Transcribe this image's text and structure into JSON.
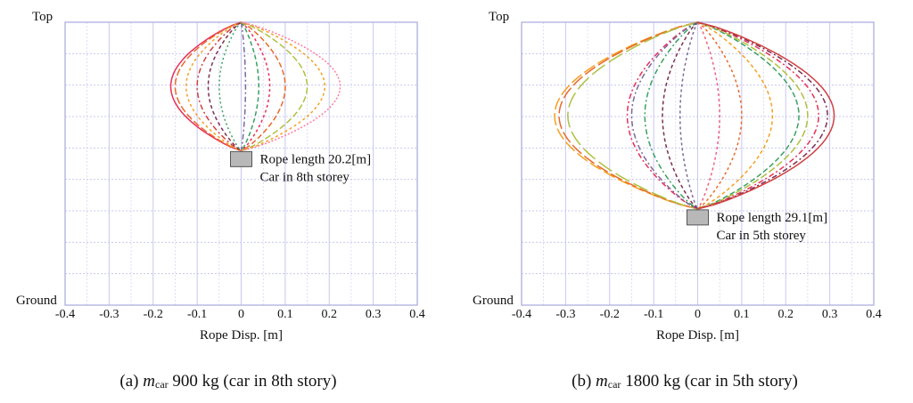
{
  "colors": {
    "grid": "#c8c8f0",
    "frame": "#b4b4e4",
    "car_fill": "#b8b8b8",
    "curve_palette": [
      "#e8305a",
      "#ff7a9c",
      "#e86a2a",
      "#f4a020",
      "#b0c040",
      "#3aa060",
      "#7a6a9a",
      "#7a3050",
      "#d04040",
      "#f06080"
    ]
  },
  "charts": [
    {
      "id": "a",
      "chart_data": {
        "type": "line",
        "title": "",
        "xlabel": "Rope Disp. [m]",
        "ylabel": "",
        "xlim": [
          -0.4,
          0.4
        ],
        "ylim": [
          0,
          1
        ],
        "x_ticks": [
          "-0.4",
          "-0.3",
          "-0.2",
          "-0.1",
          "0",
          "0.1",
          "0.2",
          "0.3",
          "0.4"
        ],
        "y_top_label": "Top",
        "y_bottom_label": "Ground",
        "grid": true,
        "car_position_fraction_from_top": 0.454,
        "annotation_lines": [
          "Rope length 20.2[m]",
          "Car in 8th storey"
        ],
        "series": [
          {
            "peak": -0.16,
            "color": "#e8305a",
            "dash": ""
          },
          {
            "peak": -0.15,
            "color": "#e86a2a",
            "dash": "8,3"
          },
          {
            "peak": -0.125,
            "color": "#f4a020",
            "dash": "3,3"
          },
          {
            "peak": -0.1,
            "color": "#d04040",
            "dash": "6,3,2,3"
          },
          {
            "peak": -0.075,
            "color": "#7a3050",
            "dash": "4,3"
          },
          {
            "peak": -0.05,
            "color": "#3aa060",
            "dash": "2,3"
          },
          {
            "peak": 0.01,
            "color": "#7a6a9a",
            "dash": "6,3,2,3"
          },
          {
            "peak": 0.04,
            "color": "#3aa060",
            "dash": "5,3"
          },
          {
            "peak": 0.065,
            "color": "#e8305a",
            "dash": "3,3"
          },
          {
            "peak": 0.1,
            "color": "#e86a2a",
            "dash": "6,3"
          },
          {
            "peak": 0.15,
            "color": "#b0c040",
            "dash": "7,3"
          },
          {
            "peak": 0.19,
            "color": "#f4a020",
            "dash": "3,3"
          },
          {
            "peak": 0.225,
            "color": "#ff7a9c",
            "dash": "2,2"
          }
        ]
      }
    },
    {
      "id": "b",
      "chart_data": {
        "type": "line",
        "title": "",
        "xlabel": "Rope Disp. [m]",
        "ylabel": "",
        "xlim": [
          -0.4,
          0.4
        ],
        "ylim": [
          0,
          1
        ],
        "x_ticks": [
          "-0.4",
          "-0.3",
          "-0.2",
          "-0.1",
          "0",
          "0.1",
          "0.2",
          "0.3",
          "0.4"
        ],
        "y_top_label": "Top",
        "y_bottom_label": "Ground",
        "grid": true,
        "car_position_fraction_from_top": 0.66,
        "annotation_lines": [
          "Rope length 29.1[m]",
          "Car in 5th storey"
        ],
        "series": [
          {
            "peak": -0.325,
            "color": "#f4a020",
            "dash": "14,4"
          },
          {
            "peak": -0.315,
            "color": "#e86a2a",
            "dash": "14,4"
          },
          {
            "peak": -0.295,
            "color": "#b0c040",
            "dash": "18,5"
          },
          {
            "peak": -0.16,
            "color": "#e8305a",
            "dash": "6,3,2,3"
          },
          {
            "peak": -0.15,
            "color": "#7a6a9a",
            "dash": "6,3,2,3"
          },
          {
            "peak": -0.12,
            "color": "#3aa060",
            "dash": "6,3,2,3"
          },
          {
            "peak": -0.08,
            "color": "#7a3050",
            "dash": "4,3"
          },
          {
            "peak": -0.04,
            "color": "#7a6a9a",
            "dash": "3,3"
          },
          {
            "peak": 0.05,
            "color": "#f06080",
            "dash": "3,3"
          },
          {
            "peak": 0.1,
            "color": "#e86a2a",
            "dash": "3,3"
          },
          {
            "peak": 0.17,
            "color": "#f4a020",
            "dash": "4,3"
          },
          {
            "peak": 0.23,
            "color": "#3aa060",
            "dash": "6,3"
          },
          {
            "peak": 0.25,
            "color": "#b0c040",
            "dash": "8,3"
          },
          {
            "peak": 0.275,
            "color": "#e8305a",
            "dash": "6,3,2,3"
          },
          {
            "peak": 0.295,
            "color": "#7a3050",
            "dash": "6,3,2,3"
          },
          {
            "peak": 0.31,
            "color": "#d04040",
            "dash": ""
          }
        ]
      }
    }
  ],
  "captions": [
    {
      "prefix": "(a) ",
      "symbol": "m",
      "subscript": "car",
      "text": " 900 kg (car in 8th story)"
    },
    {
      "prefix": "(b) ",
      "symbol": "m",
      "subscript": "car",
      "text": " 1800 kg (car in 5th story)"
    }
  ]
}
